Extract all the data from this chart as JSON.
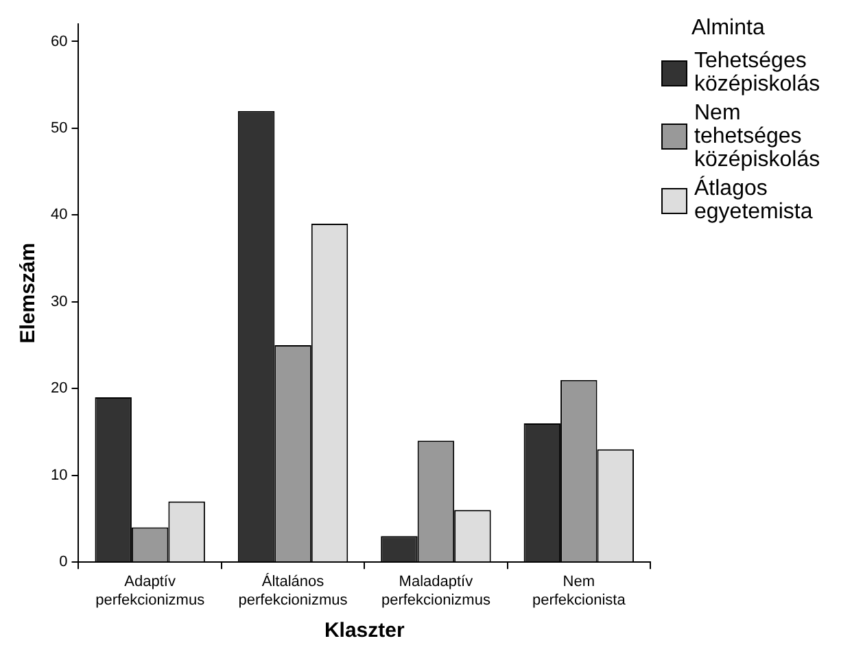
{
  "chart_data": {
    "type": "bar",
    "xlabel": "Klaszter",
    "ylabel": "Elemszám",
    "legend_title": "Alminta",
    "legend": "right",
    "grid": false,
    "categories": [
      "Adaptív perfekcionizmus",
      "Általános perfekcionizmus",
      "Maladaptív perfekcionizmus",
      "Nem perfekcionista"
    ],
    "ylim": [
      0,
      62
    ],
    "yticks": [
      0,
      10,
      20,
      30,
      40,
      50,
      60
    ],
    "series": [
      {
        "name": "Tehetséges középiskolás",
        "color": "#333333",
        "values": [
          19,
          52,
          3,
          16
        ]
      },
      {
        "name": "Nem tehetséges középiskolás",
        "color": "#999999",
        "values": [
          4,
          25,
          14,
          21
        ]
      },
      {
        "name": "Átlagos egyetemista",
        "color": "#dddddd",
        "values": [
          7,
          39,
          6,
          13
        ]
      }
    ]
  }
}
